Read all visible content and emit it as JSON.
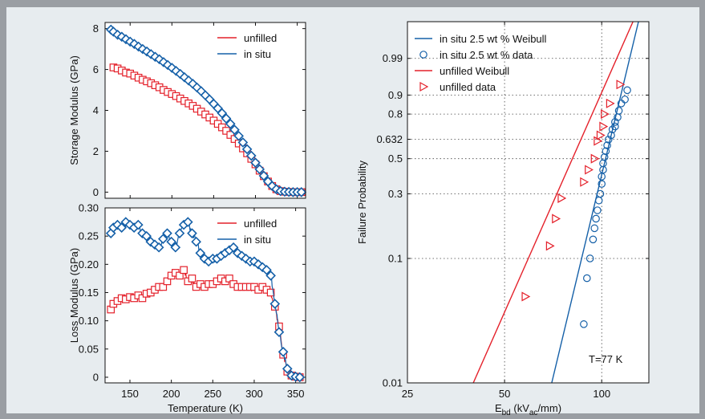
{
  "colors": {
    "red": "#e4202a",
    "blue": "#1560a8",
    "panel_bg": "#e7ecef",
    "plot_bg": "#ffffff",
    "frame": "#9a9ea3"
  },
  "chart_data": [
    {
      "type": "line",
      "id": "storage",
      "xlim": [
        120,
        360
      ],
      "ylim": [
        -0.3,
        8.3
      ],
      "xticks": [],
      "yticks": [
        0,
        2,
        4,
        6,
        8
      ],
      "xlabel": "",
      "ylabel": "Storage Modulus (GPa)",
      "legend_position": "top-right",
      "series": [
        {
          "name": "unfilled",
          "color": "red",
          "marker": "square",
          "x": [
            130,
            135,
            140,
            145,
            150,
            155,
            160,
            165,
            170,
            175,
            180,
            185,
            190,
            195,
            200,
            205,
            210,
            215,
            220,
            225,
            230,
            235,
            240,
            245,
            250,
            255,
            260,
            265,
            270,
            275,
            280,
            285,
            290,
            295,
            300,
            305,
            310,
            315,
            320,
            325,
            330,
            335,
            340,
            345,
            350,
            355
          ],
          "y": [
            6.1,
            6.05,
            5.95,
            5.85,
            5.8,
            5.7,
            5.6,
            5.5,
            5.42,
            5.33,
            5.23,
            5.13,
            5.0,
            4.9,
            4.8,
            4.7,
            4.58,
            4.46,
            4.34,
            4.22,
            4.08,
            3.94,
            3.8,
            3.65,
            3.5,
            3.34,
            3.17,
            3.0,
            2.8,
            2.6,
            2.38,
            2.14,
            1.9,
            1.63,
            1.36,
            1.05,
            0.78,
            0.52,
            0.3,
            0.14,
            0.05,
            0.02,
            0.01,
            0.0,
            0.0,
            0.0
          ]
        },
        {
          "name": "in situ",
          "color": "blue",
          "marker": "diamond",
          "x": [
            127,
            130,
            135,
            140,
            145,
            150,
            155,
            160,
            165,
            170,
            175,
            180,
            185,
            190,
            195,
            200,
            205,
            210,
            215,
            220,
            225,
            230,
            235,
            240,
            245,
            250,
            255,
            260,
            265,
            270,
            275,
            280,
            285,
            290,
            295,
            300,
            305,
            310,
            315,
            320,
            325,
            330,
            335,
            340,
            345,
            350,
            355
          ],
          "y": [
            7.95,
            7.85,
            7.7,
            7.6,
            7.48,
            7.36,
            7.25,
            7.12,
            7.0,
            6.88,
            6.75,
            6.62,
            6.5,
            6.36,
            6.22,
            6.08,
            5.93,
            5.78,
            5.62,
            5.46,
            5.3,
            5.12,
            4.94,
            4.74,
            4.54,
            4.32,
            4.1,
            3.86,
            3.6,
            3.34,
            3.05,
            2.75,
            2.43,
            2.1,
            1.78,
            1.44,
            1.12,
            0.8,
            0.52,
            0.3,
            0.14,
            0.05,
            0.02,
            0.01,
            0.0,
            0.0,
            0.0
          ]
        }
      ]
    },
    {
      "type": "line",
      "id": "loss",
      "xlim": [
        120,
        362
      ],
      "ylim": [
        -0.01,
        0.3
      ],
      "xticks": [
        150,
        200,
        250,
        300,
        350
      ],
      "yticks": [
        0,
        0.05,
        0.1,
        0.15,
        0.2,
        0.25,
        0.3
      ],
      "ytick_labels": [
        "0",
        "0.05",
        "0.10",
        "0.15",
        "0.20",
        "0.25",
        "0.30"
      ],
      "xlabel": "Temperature (K)",
      "ylabel": "Loss Modulus (GPa)",
      "legend_position": "top-right",
      "series": [
        {
          "name": "unfilled",
          "color": "red",
          "marker": "square",
          "x": [
            127,
            130,
            135,
            140,
            145,
            150,
            155,
            160,
            165,
            170,
            175,
            180,
            185,
            190,
            195,
            200,
            205,
            210,
            215,
            220,
            225,
            230,
            235,
            240,
            245,
            250,
            255,
            260,
            265,
            270,
            275,
            280,
            285,
            290,
            295,
            300,
            305,
            310,
            315,
            320,
            325,
            330,
            335,
            340,
            345,
            350,
            355
          ],
          "y": [
            0.12,
            0.13,
            0.135,
            0.14,
            0.138,
            0.142,
            0.14,
            0.145,
            0.14,
            0.148,
            0.15,
            0.155,
            0.16,
            0.16,
            0.17,
            0.18,
            0.185,
            0.18,
            0.19,
            0.17,
            0.175,
            0.16,
            0.165,
            0.16,
            0.165,
            0.165,
            0.17,
            0.175,
            0.17,
            0.175,
            0.165,
            0.16,
            0.16,
            0.16,
            0.16,
            0.16,
            0.155,
            0.16,
            0.155,
            0.15,
            0.125,
            0.09,
            0.04,
            0.01,
            0.003,
            0.001,
            0.0
          ]
        },
        {
          "name": "in situ",
          "color": "blue",
          "marker": "diamond",
          "x": [
            127,
            130,
            135,
            140,
            145,
            150,
            155,
            160,
            165,
            170,
            175,
            180,
            185,
            190,
            195,
            200,
            205,
            210,
            215,
            220,
            225,
            230,
            235,
            240,
            245,
            250,
            255,
            260,
            265,
            270,
            275,
            280,
            285,
            290,
            295,
            300,
            305,
            310,
            315,
            320,
            325,
            330,
            335,
            340,
            345,
            350,
            355
          ],
          "y": [
            0.255,
            0.265,
            0.27,
            0.265,
            0.275,
            0.27,
            0.265,
            0.27,
            0.255,
            0.25,
            0.24,
            0.235,
            0.23,
            0.245,
            0.255,
            0.24,
            0.23,
            0.255,
            0.27,
            0.275,
            0.255,
            0.24,
            0.22,
            0.21,
            0.205,
            0.21,
            0.21,
            0.215,
            0.22,
            0.225,
            0.23,
            0.22,
            0.215,
            0.21,
            0.205,
            0.205,
            0.2,
            0.195,
            0.19,
            0.18,
            0.13,
            0.08,
            0.045,
            0.015,
            0.003,
            0.001,
            0.0
          ]
        }
      ]
    },
    {
      "type": "scatter",
      "id": "weibull",
      "xscale": "log",
      "yscale": "weibull",
      "xlim": [
        25,
        140
      ],
      "ylim": [
        0.01,
        0.9999
      ],
      "xticks": [
        25,
        50,
        100
      ],
      "yticks": [
        0.01,
        0.1,
        0.3,
        0.5,
        0.632,
        0.8,
        0.9,
        0.99
      ],
      "ytick_labels": [
        "0.01",
        "0.1",
        "0.3",
        "0.5",
        "0.632",
        "0.8",
        "0.9",
        "0.99"
      ],
      "grid": "dotted",
      "xlabel": "E",
      "xlabel_sub": "bd",
      "xlabel_mid": " (kV",
      "xlabel_sub2": "ac",
      "xlabel_end": "/mm)",
      "ylabel": "Failure Probability",
      "annotation": "T=77 K",
      "legend_position": "top-left",
      "series": [
        {
          "name": "in situ 2.5 wt % Weibull",
          "color": "blue",
          "kind": "line",
          "x": [
            70,
            130
          ],
          "y": [
            0.01,
            0.9999
          ]
        },
        {
          "name": "in situ 2.5 wt % data",
          "color": "blue",
          "kind": "marker",
          "marker": "circle",
          "x": [
            88,
            90,
            92,
            94,
            95,
            96,
            97,
            98,
            99,
            100,
            100,
            101,
            101,
            102,
            103,
            104,
            105,
            107,
            108,
            110,
            110,
            112,
            113,
            115,
            118,
            120
          ],
          "y": [
            0.03,
            0.07,
            0.1,
            0.14,
            0.17,
            0.2,
            0.23,
            0.27,
            0.3,
            0.35,
            0.39,
            0.43,
            0.47,
            0.51,
            0.55,
            0.59,
            0.63,
            0.66,
            0.7,
            0.72,
            0.75,
            0.78,
            0.82,
            0.86,
            0.88,
            0.92
          ]
        },
        {
          "name": "unfilled Weibull",
          "color": "red",
          "kind": "line",
          "x": [
            40,
            125
          ],
          "y": [
            0.01,
            0.9999
          ]
        },
        {
          "name": "unfilled data",
          "color": "red",
          "kind": "marker",
          "marker": "triangle-right",
          "x": [
            58,
            69,
            72,
            75,
            88,
            91,
            95,
            97,
            99,
            101,
            102,
            106,
            114
          ],
          "y": [
            0.05,
            0.125,
            0.2,
            0.28,
            0.36,
            0.43,
            0.5,
            0.62,
            0.66,
            0.72,
            0.8,
            0.86,
            0.94
          ]
        }
      ]
    }
  ]
}
